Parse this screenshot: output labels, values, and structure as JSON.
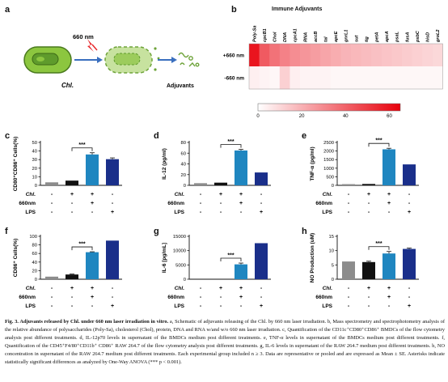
{
  "panel_a": {
    "letter": "a",
    "laser_label": "660 nm",
    "cell_label": "Chl.",
    "product_label": "Adjuvants"
  },
  "panel_b": {
    "letter": "b",
    "title": "Immune Adjuvants",
    "columns": [
      "Poly-Sa",
      "cpcB1",
      "Chol",
      "DNA",
      "cpcA1",
      "RNA",
      "accB",
      "tal",
      "apcE",
      "gnrL1",
      "sut",
      "tig",
      "petA",
      "apcA",
      "psaL",
      "fusA",
      "psbC",
      "hisD",
      "groL2"
    ],
    "rows": [
      {
        "label": "+660 nm",
        "values": [
          60,
          42,
          36,
          32,
          29,
          27,
          25,
          23,
          21,
          19,
          18,
          17,
          16,
          15,
          14,
          13,
          12,
          11,
          10
        ]
      },
      {
        "label": "-660 nm",
        "values": [
          4,
          3,
          2,
          12,
          4,
          3,
          3,
          3,
          2,
          2,
          2,
          2,
          2,
          2,
          2,
          2,
          2,
          2,
          2
        ]
      }
    ],
    "colorbar_ticks": [
      "0",
      "20",
      "40",
      "60"
    ],
    "colorbar_max": 65,
    "color_low": "#ffffff",
    "color_high": "#e8000b"
  },
  "treatments": {
    "row_labels": [
      "Chl.",
      "660nm",
      "LPS"
    ],
    "signs": [
      [
        "-",
        "+",
        "+",
        "-"
      ],
      [
        "-",
        "-",
        "+",
        "-"
      ],
      [
        "-",
        "-",
        "-",
        "+"
      ]
    ]
  },
  "significance": "***",
  "bar_colors": [
    "#8c8c8c",
    "#111111",
    "#1f86c0",
    "#1a2f8a"
  ],
  "chart_data": [
    {
      "letter": "c",
      "type": "bar",
      "ylabel": "CD80⁺CD86⁺ Cells(%)",
      "ylim": [
        0,
        50
      ],
      "ticks": [
        "0",
        "10",
        "20",
        "30",
        "40",
        "50"
      ],
      "values": [
        3.5,
        5.5,
        36,
        30.5
      ],
      "errors": [
        0,
        0,
        2,
        1.5
      ],
      "sig_between": [
        1,
        2
      ]
    },
    {
      "letter": "d",
      "type": "bar",
      "ylabel": "IL-12 (pg/ml)",
      "ylim": [
        0,
        80
      ],
      "ticks": [
        "0",
        "20",
        "40",
        "60",
        "80"
      ],
      "values": [
        4,
        5,
        65,
        24
      ],
      "errors": [
        0,
        0,
        2,
        0
      ],
      "sig_between": [
        1,
        2
      ]
    },
    {
      "letter": "e",
      "type": "bar",
      "ylabel": "TNF-α (pg/ml)",
      "ylim": [
        0,
        2500
      ],
      "ticks": [
        "0",
        "500",
        "1000",
        "1500",
        "2000",
        "2500"
      ],
      "values": [
        70,
        80,
        2100,
        1220
      ],
      "errors": [
        0,
        0,
        60,
        0
      ],
      "sig_between": [
        1,
        2
      ]
    },
    {
      "letter": "f",
      "type": "bar",
      "ylabel": "CD86⁺ Cells(%)",
      "ylim": [
        0,
        100
      ],
      "ticks": [
        "0",
        "20",
        "40",
        "60",
        "80",
        "100"
      ],
      "values": [
        6,
        11,
        63,
        90
      ],
      "errors": [
        0,
        1,
        1,
        0
      ],
      "sig_between": [
        1,
        2
      ]
    },
    {
      "letter": "g",
      "type": "bar",
      "ylabel": "IL-6 [pg/mL]",
      "ylim": [
        0,
        15000
      ],
      "ticks": [
        "0",
        "5000",
        "10000",
        "15000"
      ],
      "values": [
        0,
        0,
        5200,
        12600
      ],
      "errors": [
        0,
        0,
        450,
        0
      ],
      "sig_between": [
        1,
        2
      ]
    },
    {
      "letter": "h",
      "type": "bar",
      "ylabel": "NO Production (uM)",
      "ylim": [
        0,
        15
      ],
      "ticks": [
        "0",
        "5",
        "10",
        "15"
      ],
      "values": [
        6.2,
        6,
        9,
        10.6
      ],
      "errors": [
        0,
        0.3,
        0.7,
        0.3
      ],
      "sig_between": [
        1,
        2
      ]
    }
  ],
  "caption": {
    "bold_lead": "Fig. 3. Adjuvants released by Chl. under 660 nm laser irradiation in vitro.",
    "body": " a, Schematic of adjuvants releasing of the Chl. by 660 nm laser irradiation. b, Mass spectrometry and spectrophotometry analysis of the relative abundance of polysaccharides (Poly-Sa), cholesterol (Chol), protein, DNA and RNA w/and w/o 660 nm laser irradiation. c, Quantification of the CD11c⁺CD80⁺CD86⁺ BMDCs of the flow cytometry analysis post different treatments. d, IL-12p70 levels in supernatant of the BMDCs medium post different treatments. e, TNF-α levels in supernatant of the BMDCs medium post different treatments. f, Quantification of the CD45⁺F4/80⁺CD11b⁺ CD86⁺ RAW 264.7 of the flow cytometry analysis post different treatments. g, IL-6 levels in supernatant of the RAW 264.7 medium post different treatments. h, NO concentration in supernatant of the RAW 264.7 medium post different treatments. Each experimental group included n ≥ 3. Data are representative or pooled and are expressed as Mean ± SE. Asterisks indicate statistically significant differences as analyzed by One-Way ANOVA (*** p < 0.001)."
  }
}
